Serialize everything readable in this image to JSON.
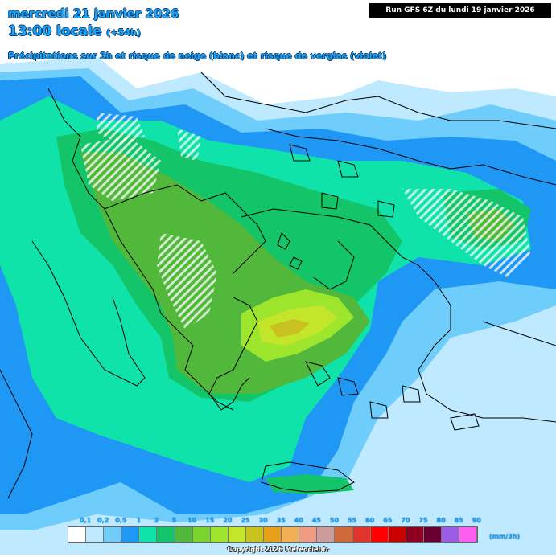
{
  "header": {
    "date": "mercredi 21 janvier 2026",
    "time": "13:00 locale",
    "lead": "(+54h)",
    "subtitle": "Précipitations sur 3h et risque de neige (blanc) et risque de verglas (violet)",
    "run": "Run GFS 6Z du lundi 19 janvier 2026"
  },
  "legend": {
    "unit": "(mm/3h)",
    "labels": [
      "0,1",
      "0,2",
      "0,5",
      "1",
      "2",
      "5",
      "10",
      "15",
      "20",
      "25",
      "30",
      "35",
      "40",
      "45",
      "50",
      "55",
      "60",
      "65",
      "70",
      "75",
      "80",
      "85",
      "90"
    ],
    "colors": [
      "#ffffff",
      "#bfe9ff",
      "#6fcdfb",
      "#1f97f5",
      "#10e3a9",
      "#14c468",
      "#52b83b",
      "#77d42b",
      "#9de62d",
      "#c3e62a",
      "#c9c11f",
      "#e6a018",
      "#f0b053",
      "#f09a84",
      "#cc9b9b",
      "#d06a3a",
      "#e0332d",
      "#ff0000",
      "#c80000",
      "#8f0020",
      "#6a0032",
      "#9c5ce6",
      "#ff5cf0"
    ]
  },
  "copyright": "Copyright 2026 Meteociel.fr",
  "map": {
    "colors": {
      "sea": "#ffffff",
      "light_blue": "#bfe9ff",
      "mid_blue": "#6fcdfb",
      "blue": "#1f97f5",
      "cyan_green": "#10e3a9",
      "green": "#14c468",
      "olive": "#52b83b",
      "yellow_green": "#9de62d",
      "yellow": "#c3e62a",
      "ochre": "#c9c11f"
    }
  }
}
